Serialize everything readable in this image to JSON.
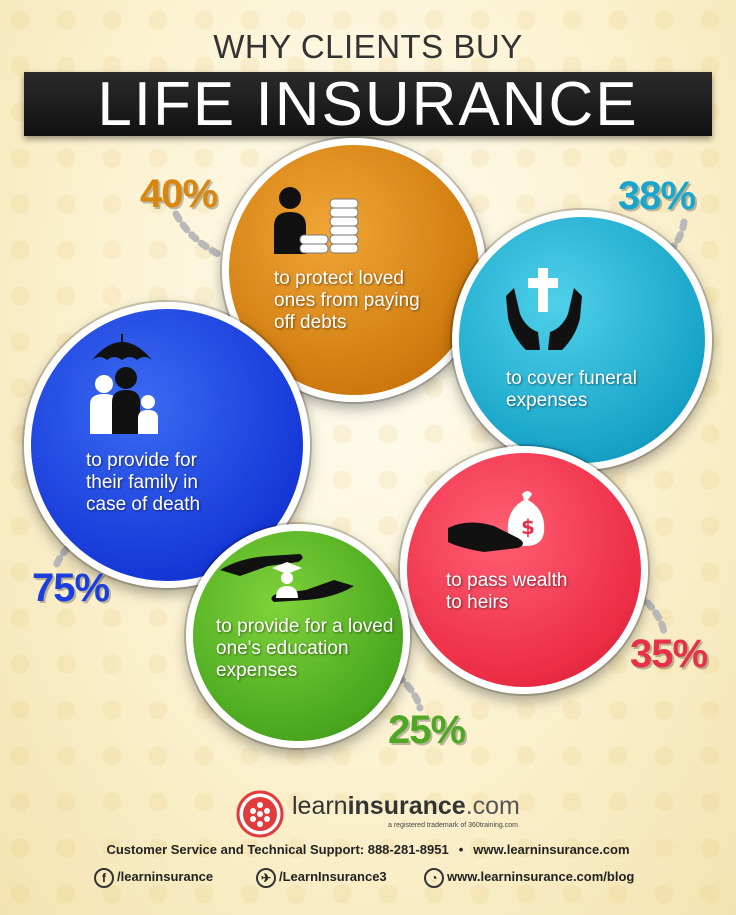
{
  "header": {
    "subtitle": "WHY CLIENTS BUY",
    "title": "LIFE INSURANCE"
  },
  "reasons": [
    {
      "id": "debts",
      "percent": "40%",
      "text": [
        "to protect loved",
        "ones from paying",
        "off debts"
      ],
      "color": "#d9860f",
      "icon": "person-with-coins-icon"
    },
    {
      "id": "funeral",
      "percent": "38%",
      "text": [
        "to cover funeral",
        "expenses"
      ],
      "color": "#1aa6cc",
      "icon": "hands-holding-cross-icon"
    },
    {
      "id": "family",
      "percent": "75%",
      "text": [
        "to provide for",
        "their family in",
        "case of death"
      ],
      "color": "#1a3fdc",
      "icon": "family-under-umbrella-icon"
    },
    {
      "id": "wealth",
      "percent": "35%",
      "text": [
        "to pass wealth",
        "to heirs"
      ],
      "color": "#e8304a",
      "icon": "hand-with-money-bag-icon"
    },
    {
      "id": "education",
      "percent": "25%",
      "text": [
        "to provide for a loved",
        "one's education",
        "expenses"
      ],
      "color": "#4ea823",
      "icon": "hands-with-graduate-icon"
    }
  ],
  "footer": {
    "brand_learn": "learn",
    "brand_insurance": "insurance",
    "brand_tld": ".com",
    "trademark": "a registered trademark of 360training.com",
    "support_label": "Customer Service and Technical Support: 888-281-8951",
    "separator": "•",
    "website": "www.learninsurance.com",
    "facebook": "/learninsurance",
    "twitter": "/LearnInsurance3",
    "blog": "www.learninsurance.com/blog"
  }
}
